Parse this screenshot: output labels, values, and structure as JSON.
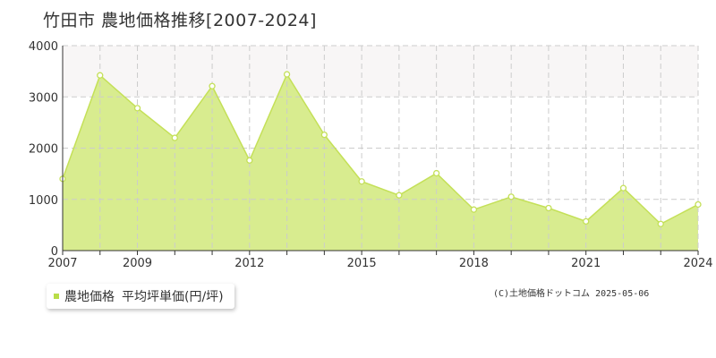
{
  "title": "竹田市 農地価格推移[2007-2024]",
  "colors": {
    "area_fill": "#d8ec8f",
    "line": "#c4e058",
    "marker_fill": "#ffffff",
    "marker_stroke": "#c4e058",
    "band": "#f8f6f6",
    "grid": "#cccccc",
    "axis": "#333333",
    "legend_swatch": "#b9dd48"
  },
  "legend": {
    "series_label": "農地価格",
    "unit_label": "平均坪単価(円/坪)"
  },
  "copyright": "(C)土地価格ドットコム 2025-05-06",
  "chart_data": {
    "type": "area",
    "x": [
      2007,
      2008,
      2009,
      2010,
      2011,
      2012,
      2013,
      2014,
      2015,
      2016,
      2017,
      2018,
      2019,
      2020,
      2021,
      2022,
      2023,
      2024
    ],
    "series": [
      {
        "name": "農地価格",
        "values": [
          1400,
          3420,
          2780,
          2200,
          3210,
          1760,
          3440,
          2260,
          1350,
          1080,
          1510,
          800,
          1050,
          830,
          570,
          1220,
          520,
          900
        ]
      }
    ],
    "x_ticks": [
      2007,
      2009,
      2012,
      2015,
      2018,
      2021,
      2024
    ],
    "y_ticks": [
      0,
      1000,
      2000,
      3000,
      4000
    ],
    "xlim": [
      2007,
      2024
    ],
    "ylim": [
      0,
      4000
    ],
    "shaded_band": [
      3000,
      4000
    ],
    "grid": true,
    "legend_position": "bottom-left"
  }
}
